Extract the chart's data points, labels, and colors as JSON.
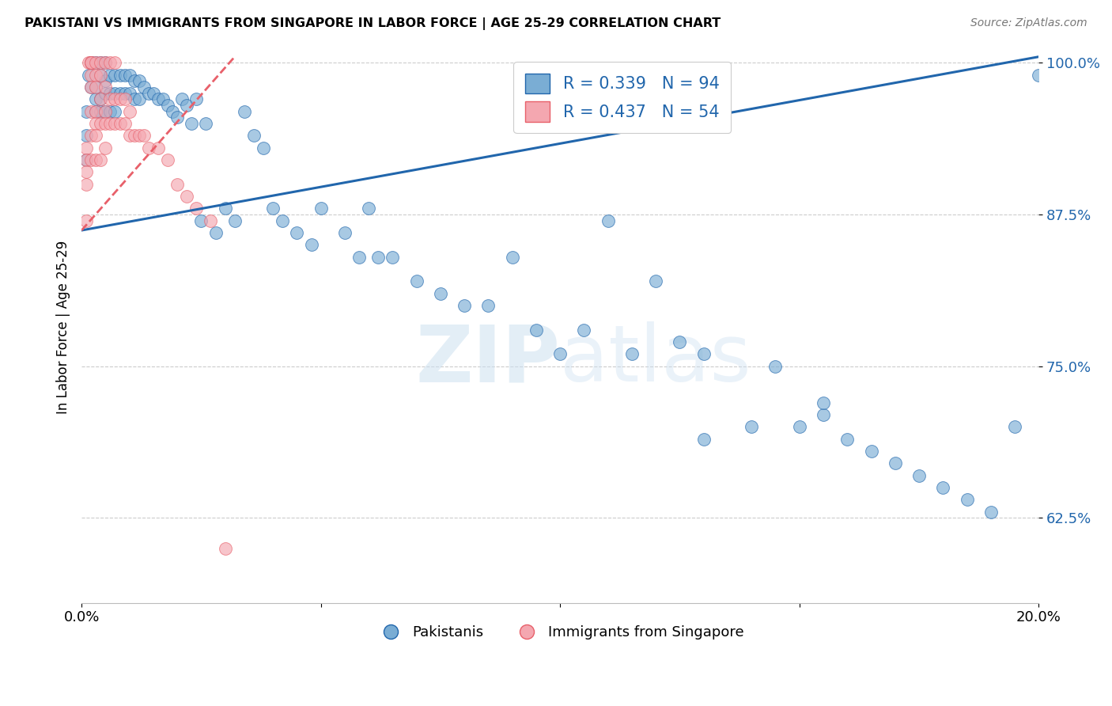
{
  "title": "PAKISTANI VS IMMIGRANTS FROM SINGAPORE IN LABOR FORCE | AGE 25-29 CORRELATION CHART",
  "source": "Source: ZipAtlas.com",
  "ylabel": "In Labor Force | Age 25-29",
  "xlim": [
    0.0,
    0.2
  ],
  "ylim": [
    0.555,
    1.01
  ],
  "yticks": [
    0.625,
    0.75,
    0.875,
    1.0
  ],
  "ytick_labels": [
    "62.5%",
    "75.0%",
    "87.5%",
    "100.0%"
  ],
  "xticks": [
    0.0,
    0.05,
    0.1,
    0.15,
    0.2
  ],
  "xtick_labels": [
    "0.0%",
    "",
    "",
    "",
    "20.0%"
  ],
  "blue_R": 0.339,
  "blue_N": 94,
  "pink_R": 0.437,
  "pink_N": 54,
  "blue_color": "#7aadd4",
  "pink_color": "#f4a7b0",
  "blue_line_color": "#2166ac",
  "pink_line_color": "#e8606a",
  "watermark": "ZIPatlas",
  "legend_blue_label": "Pakistanis",
  "legend_pink_label": "Immigrants from Singapore",
  "blue_line_x0": 0.0,
  "blue_line_x1": 0.2,
  "blue_line_y0": 0.862,
  "blue_line_y1": 1.005,
  "pink_line_x0": 0.0,
  "pink_line_x1": 0.032,
  "pink_line_y0": 0.862,
  "pink_line_y1": 1.005,
  "blue_x": [
    0.001,
    0.001,
    0.001,
    0.0015,
    0.002,
    0.002,
    0.002,
    0.002,
    0.003,
    0.003,
    0.003,
    0.003,
    0.004,
    0.004,
    0.004,
    0.004,
    0.005,
    0.005,
    0.005,
    0.005,
    0.006,
    0.006,
    0.006,
    0.007,
    0.007,
    0.007,
    0.008,
    0.008,
    0.009,
    0.009,
    0.01,
    0.01,
    0.011,
    0.011,
    0.012,
    0.012,
    0.013,
    0.014,
    0.015,
    0.016,
    0.017,
    0.018,
    0.019,
    0.02,
    0.021,
    0.022,
    0.023,
    0.024,
    0.025,
    0.026,
    0.028,
    0.03,
    0.032,
    0.034,
    0.036,
    0.038,
    0.04,
    0.042,
    0.045,
    0.048,
    0.05,
    0.055,
    0.058,
    0.06,
    0.062,
    0.065,
    0.07,
    0.075,
    0.08,
    0.085,
    0.09,
    0.095,
    0.1,
    0.105,
    0.11,
    0.115,
    0.12,
    0.125,
    0.13,
    0.14,
    0.15,
    0.155,
    0.16,
    0.165,
    0.17,
    0.175,
    0.18,
    0.185,
    0.19,
    0.195,
    0.2,
    0.13,
    0.145,
    0.155
  ],
  "blue_y": [
    0.96,
    0.94,
    0.92,
    0.99,
    1.0,
    1.0,
    1.0,
    0.98,
    1.0,
    0.98,
    0.97,
    0.96,
    1.0,
    0.99,
    0.97,
    0.96,
    1.0,
    0.985,
    0.975,
    0.96,
    0.99,
    0.975,
    0.96,
    0.99,
    0.975,
    0.96,
    0.99,
    0.975,
    0.99,
    0.975,
    0.99,
    0.975,
    0.985,
    0.97,
    0.985,
    0.97,
    0.98,
    0.975,
    0.975,
    0.97,
    0.97,
    0.965,
    0.96,
    0.955,
    0.97,
    0.965,
    0.95,
    0.97,
    0.87,
    0.95,
    0.86,
    0.88,
    0.87,
    0.96,
    0.94,
    0.93,
    0.88,
    0.87,
    0.86,
    0.85,
    0.88,
    0.86,
    0.84,
    0.88,
    0.84,
    0.84,
    0.82,
    0.81,
    0.8,
    0.8,
    0.84,
    0.78,
    0.76,
    0.78,
    0.87,
    0.76,
    0.82,
    0.77,
    0.76,
    0.7,
    0.7,
    0.71,
    0.69,
    0.68,
    0.67,
    0.66,
    0.65,
    0.64,
    0.63,
    0.7,
    0.99,
    0.69,
    0.75,
    0.72
  ],
  "pink_x": [
    0.001,
    0.001,
    0.001,
    0.001,
    0.001,
    0.0015,
    0.002,
    0.002,
    0.002,
    0.002,
    0.002,
    0.002,
    0.002,
    0.002,
    0.003,
    0.003,
    0.003,
    0.003,
    0.003,
    0.003,
    0.003,
    0.004,
    0.004,
    0.004,
    0.004,
    0.004,
    0.005,
    0.005,
    0.005,
    0.005,
    0.005,
    0.006,
    0.006,
    0.006,
    0.007,
    0.007,
    0.007,
    0.008,
    0.008,
    0.009,
    0.009,
    0.01,
    0.01,
    0.011,
    0.012,
    0.013,
    0.014,
    0.016,
    0.018,
    0.02,
    0.022,
    0.024,
    0.027,
    0.03
  ],
  "pink_y": [
    0.93,
    0.92,
    0.91,
    0.9,
    0.87,
    1.0,
    1.0,
    1.0,
    1.0,
    0.99,
    0.98,
    0.96,
    0.94,
    0.92,
    1.0,
    0.99,
    0.98,
    0.96,
    0.95,
    0.94,
    0.92,
    1.0,
    0.99,
    0.97,
    0.95,
    0.92,
    1.0,
    0.98,
    0.96,
    0.95,
    0.93,
    1.0,
    0.97,
    0.95,
    1.0,
    0.97,
    0.95,
    0.97,
    0.95,
    0.97,
    0.95,
    0.96,
    0.94,
    0.94,
    0.94,
    0.94,
    0.93,
    0.93,
    0.92,
    0.9,
    0.89,
    0.88,
    0.87,
    0.6
  ]
}
